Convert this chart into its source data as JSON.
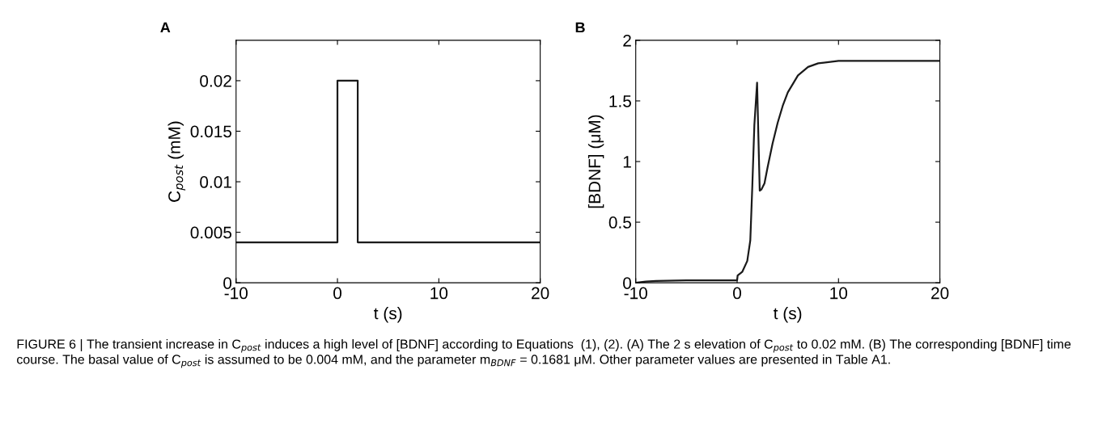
{
  "chart_data": [
    {
      "type": "step",
      "title": "A",
      "xlabel": "t (s)",
      "ylabel": "C$_{post}$ (mM)",
      "xlim": [
        -10,
        20
      ],
      "xticks": [
        -10,
        0,
        10,
        20
      ],
      "ylim": [
        0,
        0.024
      ],
      "yticks": [
        0,
        0.005,
        0.01,
        0.015,
        0.02
      ],
      "grid": false,
      "legend": false,
      "series": [
        {
          "color": "#1a1a1a",
          "x": [
            -10,
            0,
            2,
            20
          ],
          "values": [
            0.004,
            0.02,
            0.004,
            0.004
          ]
        }
      ],
      "annotations": [
        "FIGURE 6 | The transient increase in C$_{post}$ induces a high level of [BDNF] according to Equations  (1), (2). (A) The 2 s elevation of C$_{post}$ to 0.02 mM. (B) The corresponding [BDNF] time course. The basal value of C$_{post}$ is assumed to be 0.004 mM, and the parameter m$_{BDNF}$ = 0.1681 μM. Other parameter values are presented in Table A1."
      ]
    },
    {
      "type": "line",
      "title": "B",
      "xlabel": "t (s)",
      "ylabel": "[BDNF] (μM)",
      "xlim": [
        -10,
        20
      ],
      "xticks": [
        -10,
        0,
        10,
        20
      ],
      "ylim": [
        0,
        2
      ],
      "yticks": [
        0,
        0.5,
        1,
        1.5,
        2
      ],
      "grid": false,
      "legend": false,
      "series": [
        {
          "color": "#1a1a1a",
          "x": [
            -10,
            -9,
            -8,
            -5,
            0,
            0.05,
            0.5,
            1,
            1.3,
            1.5,
            1.7,
            1.97,
            2.1,
            2.23,
            2.4,
            2.7,
            3,
            3.5,
            4,
            4.5,
            5,
            6,
            7,
            8,
            10,
            20
          ],
          "values": [
            0,
            0.01,
            0.015,
            0.02,
            0.02,
            0.06,
            0.09,
            0.18,
            0.35,
            0.8,
            1.3,
            1.65,
            1.2,
            0.76,
            0.77,
            0.82,
            0.95,
            1.15,
            1.32,
            1.46,
            1.57,
            1.71,
            1.78,
            1.81,
            1.83,
            1.83
          ]
        }
      ]
    }
  ]
}
